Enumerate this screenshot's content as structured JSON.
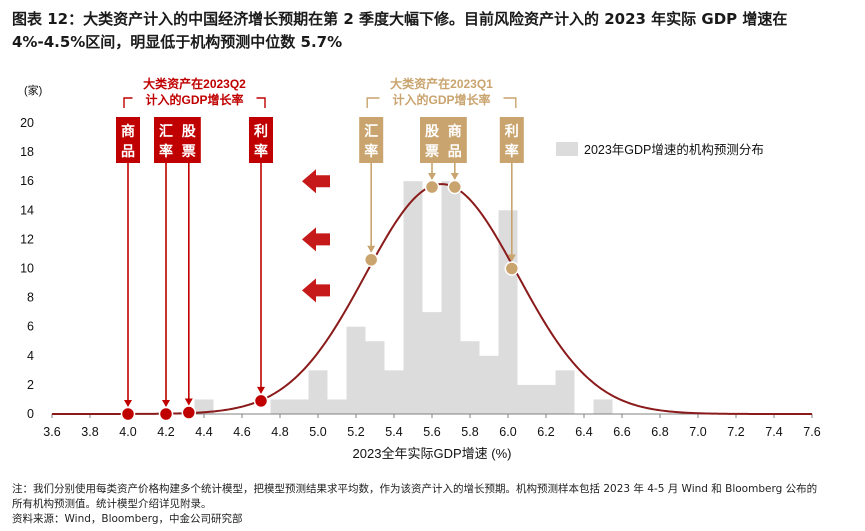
{
  "title": "图表 12：大类资产计入的中国经济增长预期在第 2 季度大幅下修。目前风险资产计入的 2023 年实际 GDP 增速在 4%-4.5%区间，明显低于机构预测中位数 5.7%",
  "footnote_lines": [
    "注：我们分别使用每类资产价格构建多个统计模型，把模型预测结果求平均数，作为该资产计入的增长预期。机构预测样本包括 2023 年 4-5 月 Wind 和 Bloomberg 公布的",
    "所有机构预测值。统计模型介绍详见附录。",
    "资料来源：Wind，Bloomberg，中金公司研究部"
  ],
  "colors": {
    "red": "#c00000",
    "tan": "#c9a46e",
    "bar": "#dcdcdc",
    "curve": "#8b1a1a",
    "axis": "#808080"
  },
  "chart_data": {
    "type": "bar",
    "xlabel": "2023全年实际GDP增速 (%)",
    "ylabel": "(家)",
    "xlim": [
      3.6,
      7.6
    ],
    "ylim": [
      0,
      20
    ],
    "xticks": [
      "3.6",
      "3.8",
      "4.0",
      "4.2",
      "4.4",
      "4.6",
      "4.8",
      "5.0",
      "5.2",
      "5.4",
      "5.6",
      "5.8",
      "6.0",
      "6.2",
      "6.4",
      "6.6",
      "6.8",
      "7.0",
      "7.2",
      "7.4",
      "7.6"
    ],
    "yticks": [
      "0",
      "2",
      "4",
      "6",
      "8",
      "10",
      "12",
      "14",
      "16",
      "18",
      "20"
    ],
    "legend_label": "2023年GDP增速的机构预测分布",
    "bin_width": 0.1,
    "bars": [
      {
        "x": 4.4,
        "y": 1
      },
      {
        "x": 4.8,
        "y": 1
      },
      {
        "x": 4.9,
        "y": 1
      },
      {
        "x": 5.0,
        "y": 3
      },
      {
        "x": 5.1,
        "y": 1
      },
      {
        "x": 5.2,
        "y": 6
      },
      {
        "x": 5.3,
        "y": 5
      },
      {
        "x": 5.4,
        "y": 3
      },
      {
        "x": 5.5,
        "y": 16
      },
      {
        "x": 5.6,
        "y": 7
      },
      {
        "x": 5.7,
        "y": 16
      },
      {
        "x": 5.8,
        "y": 5
      },
      {
        "x": 5.9,
        "y": 4
      },
      {
        "x": 6.0,
        "y": 14
      },
      {
        "x": 6.1,
        "y": 2
      },
      {
        "x": 6.2,
        "y": 2
      },
      {
        "x": 6.3,
        "y": 3
      },
      {
        "x": 6.5,
        "y": 1
      }
    ],
    "curve": {
      "mean": 5.65,
      "sd": 0.4,
      "peak": 15.8
    },
    "q2_group": {
      "label_line1": "大类资产在2023Q2",
      "label_line2": "计入的GDP增长率",
      "markers": [
        {
          "label": "商品",
          "x": 4.0,
          "y": 0
        },
        {
          "label": "汇率",
          "x": 4.2,
          "y": 0
        },
        {
          "label": "股票",
          "x": 4.32,
          "y": 0.1
        },
        {
          "label": "利率",
          "x": 4.7,
          "y": 0.9
        }
      ]
    },
    "q1_group": {
      "label_line1": "大类资产在2023Q1",
      "label_line2": "计入的GDP增长率",
      "markers": [
        {
          "label": "汇率",
          "x": 5.28,
          "y": 10.6
        },
        {
          "label": "股票",
          "x": 5.6,
          "y": 15.6
        },
        {
          "label": "商品",
          "x": 5.72,
          "y": 15.6
        },
        {
          "label": "利率",
          "x": 6.02,
          "y": 10.0
        }
      ]
    },
    "arrows_y": [
      16,
      12,
      8.5
    ]
  }
}
